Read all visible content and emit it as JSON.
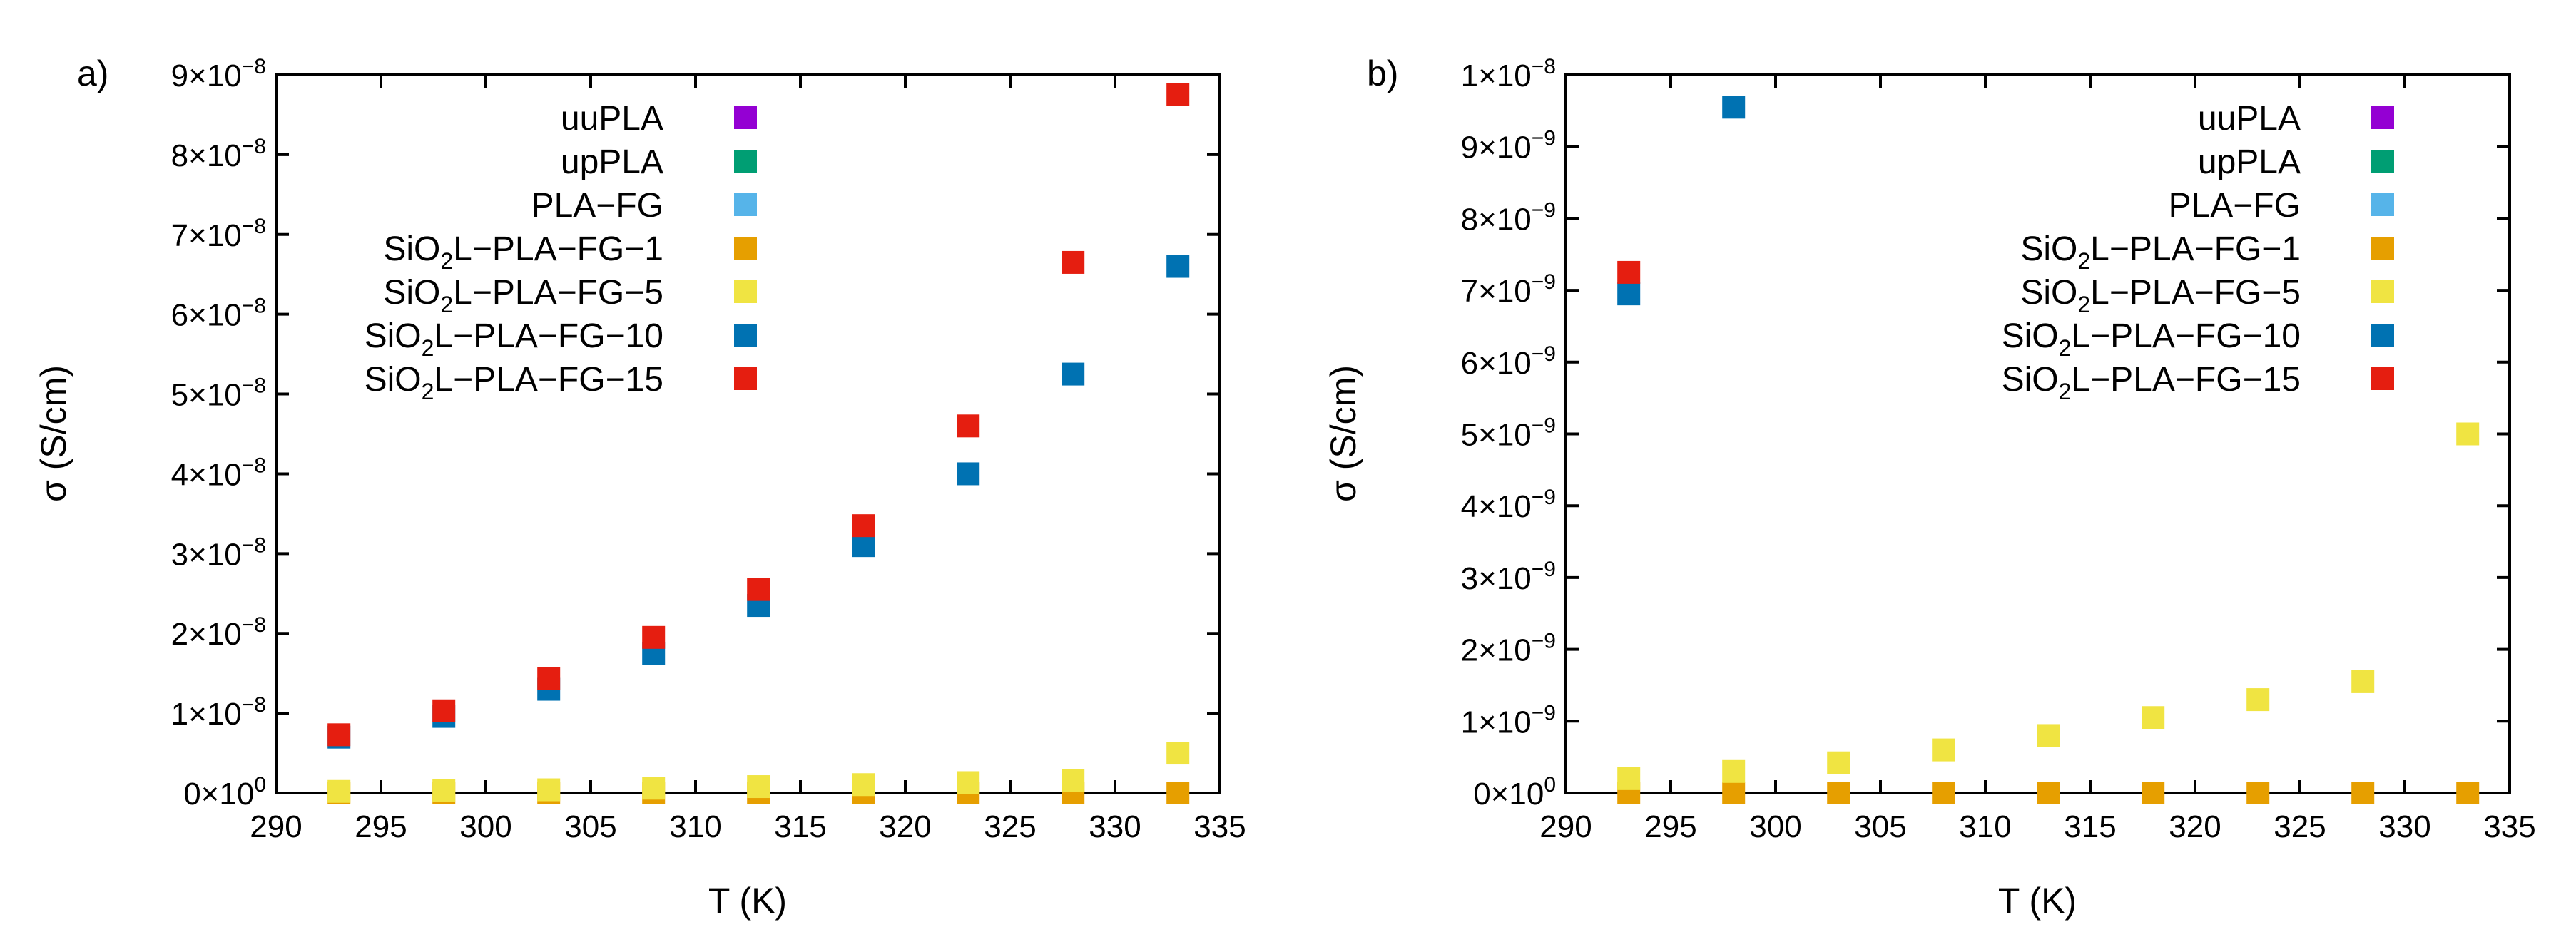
{
  "chart_data": [
    {
      "type": "scatter",
      "panel_label": "a)",
      "xlabel": "T (K)",
      "ylabel": "σ (S/cm)",
      "xlim": [
        290,
        335
      ],
      "ylim": [
        0,
        9e-08
      ],
      "x_ticks": [
        290,
        295,
        300,
        305,
        310,
        315,
        320,
        325,
        330,
        335
      ],
      "y_ticks": [
        {
          "value": 0,
          "mantissa": "0",
          "exp": "0"
        },
        {
          "value": 1e-08,
          "mantissa": "1",
          "exp": "−8"
        },
        {
          "value": 2e-08,
          "mantissa": "2",
          "exp": "−8"
        },
        {
          "value": 3e-08,
          "mantissa": "3",
          "exp": "−8"
        },
        {
          "value": 4e-08,
          "mantissa": "4",
          "exp": "−8"
        },
        {
          "value": 5e-08,
          "mantissa": "5",
          "exp": "−8"
        },
        {
          "value": 6e-08,
          "mantissa": "6",
          "exp": "−8"
        },
        {
          "value": 7e-08,
          "mantissa": "7",
          "exp": "−8"
        },
        {
          "value": 8e-08,
          "mantissa": "8",
          "exp": "−8"
        },
        {
          "value": 9e-08,
          "mantissa": "9",
          "exp": "−8"
        }
      ],
      "legend_position": "top-left",
      "x": [
        293,
        298,
        303,
        308,
        313,
        318,
        323,
        328,
        333
      ],
      "series": [
        {
          "name": "uuPLA",
          "label_parts": [
            "uuPLA",
            "",
            ""
          ],
          "color": "#9400d3",
          "values": []
        },
        {
          "name": "upPLA",
          "label_parts": [
            "upPLA",
            "",
            ""
          ],
          "color": "#009e73",
          "values": []
        },
        {
          "name": "PLA−FG",
          "label_parts": [
            "PLA−FG",
            "",
            ""
          ],
          "color": "#56b4e9",
          "values": []
        },
        {
          "name": "SiO2L−PLA−FG−1",
          "label_parts": [
            "SiO",
            "2",
            "L−PLA−FG−1"
          ],
          "color": "#e69f00",
          "values": [
            0,
            0,
            0,
            0,
            0,
            0,
            0,
            0,
            0
          ]
        },
        {
          "name": "SiO2L−PLA−FG−5",
          "label_parts": [
            "SiO",
            "2",
            "L−PLA−FG−5"
          ],
          "color": "#f0e442",
          "values": [
            2e-10,
            3e-10,
            4e-10,
            6e-10,
            8e-10,
            1.05e-09,
            1.3e-09,
            1.55e-09,
            5e-09
          ]
        },
        {
          "name": "SiO2L−PLA−FG−10",
          "label_parts": [
            "SiO",
            "2",
            "L−PLA−FG−10"
          ],
          "color": "#0072b2",
          "values": [
            7e-09,
            9.6e-09,
            1.3e-08,
            1.75e-08,
            2.35e-08,
            3.1e-08,
            4e-08,
            5.25e-08,
            6.6e-08
          ]
        },
        {
          "name": "SiO2L−PLA−FG−15",
          "label_parts": [
            "SiO",
            "2",
            "L−PLA−FG−15"
          ],
          "color": "#e51e10",
          "values": [
            7.3e-09,
            1.03e-08,
            1.43e-08,
            1.95e-08,
            2.55e-08,
            3.35e-08,
            4.6e-08,
            6.65e-08,
            8.75e-08
          ]
        }
      ]
    },
    {
      "type": "scatter",
      "panel_label": "b)",
      "xlabel": "T (K)",
      "ylabel": "σ (S/cm)",
      "xlim": [
        290,
        335
      ],
      "ylim": [
        0,
        1e-08
      ],
      "x_ticks": [
        290,
        295,
        300,
        305,
        310,
        315,
        320,
        325,
        330,
        335
      ],
      "y_ticks": [
        {
          "value": 0,
          "mantissa": "0",
          "exp": "0"
        },
        {
          "value": 1e-09,
          "mantissa": "1",
          "exp": "−9"
        },
        {
          "value": 2e-09,
          "mantissa": "2",
          "exp": "−9"
        },
        {
          "value": 3e-09,
          "mantissa": "3",
          "exp": "−9"
        },
        {
          "value": 4e-09,
          "mantissa": "4",
          "exp": "−9"
        },
        {
          "value": 5e-09,
          "mantissa": "5",
          "exp": "−9"
        },
        {
          "value": 6e-09,
          "mantissa": "6",
          "exp": "−9"
        },
        {
          "value": 7e-09,
          "mantissa": "7",
          "exp": "−9"
        },
        {
          "value": 8e-09,
          "mantissa": "8",
          "exp": "−9"
        },
        {
          "value": 9e-09,
          "mantissa": "9",
          "exp": "−9"
        },
        {
          "value": 1e-08,
          "mantissa": "1",
          "exp": "−8"
        }
      ],
      "legend_position": "top-right",
      "x": [
        293,
        298,
        303,
        308,
        313,
        318,
        323,
        328,
        333
      ],
      "series": [
        {
          "name": "uuPLA",
          "label_parts": [
            "uuPLA",
            "",
            ""
          ],
          "color": "#9400d3",
          "values": []
        },
        {
          "name": "upPLA",
          "label_parts": [
            "upPLA",
            "",
            ""
          ],
          "color": "#009e73",
          "values": []
        },
        {
          "name": "PLA−FG",
          "label_parts": [
            "PLA−FG",
            "",
            ""
          ],
          "color": "#56b4e9",
          "values": []
        },
        {
          "name": "SiO2L−PLA−FG−1",
          "label_parts": [
            "SiO",
            "2",
            "L−PLA−FG−1"
          ],
          "color": "#e69f00",
          "values": [
            0,
            0,
            0,
            0,
            0,
            0,
            0,
            0,
            0
          ]
        },
        {
          "name": "SiO2L−PLA−FG−5",
          "label_parts": [
            "SiO",
            "2",
            "L−PLA−FG−5"
          ],
          "color": "#f0e442",
          "values": [
            2e-10,
            3e-10,
            4.2e-10,
            6e-10,
            8e-10,
            1.05e-09,
            1.3e-09,
            1.55e-09,
            5e-09
          ]
        },
        {
          "name": "SiO2L−PLA−FG−10",
          "label_parts": [
            "SiO",
            "2",
            "L−PLA−FG−10"
          ],
          "color": "#0072b2",
          "values": [
            6.95e-09,
            9.55e-09,
            null,
            null,
            null,
            null,
            null,
            null,
            null
          ]
        },
        {
          "name": "SiO2L−PLA−FG−15",
          "label_parts": [
            "SiO",
            "2",
            "L−PLA−FG−15"
          ],
          "color": "#e51e10",
          "values": [
            7.25e-09,
            null,
            null,
            null,
            null,
            null,
            null,
            null,
            null
          ]
        }
      ]
    }
  ]
}
